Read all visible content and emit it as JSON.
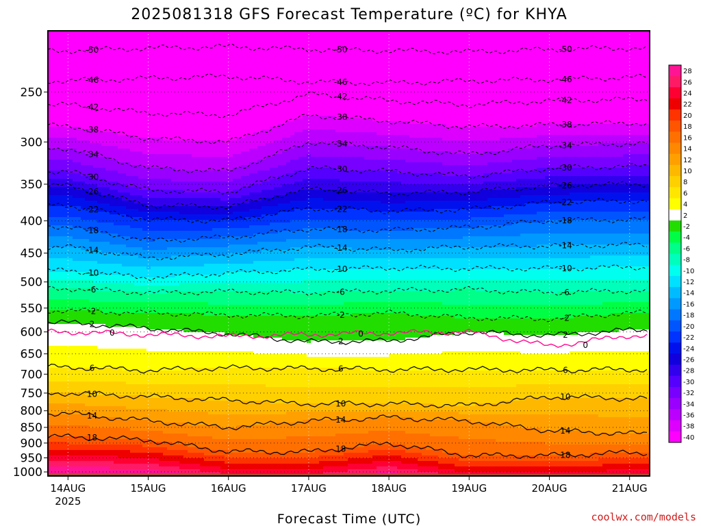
{
  "title": "2025081318 GFS Forecast Temperature (ºC) for KHYA",
  "xlabel": "Forecast Time (UTC)",
  "credit": "coolwx.com/models",
  "chart_data": {
    "type": "heatmap",
    "title": "2025081318 GFS Forecast Temperature (ºC) for KHYA",
    "xlabel": "Forecast Time (UTC)",
    "ylabel": "",
    "x_ticks": [
      {
        "label": "14AUG",
        "sublabel": "2025",
        "day": 0
      },
      {
        "label": "15AUG",
        "day": 1
      },
      {
        "label": "16AUG",
        "day": 2
      },
      {
        "label": "17AUG",
        "day": 3
      },
      {
        "label": "18AUG",
        "day": 4
      },
      {
        "label": "19AUG",
        "day": 5
      },
      {
        "label": "20AUG",
        "day": 6
      },
      {
        "label": "21AUG",
        "day": 7
      }
    ],
    "xlim": [
      -0.25,
      7.25
    ],
    "y_ticks": [
      250,
      300,
      350,
      400,
      450,
      500,
      550,
      600,
      650,
      700,
      750,
      800,
      850,
      900,
      950,
      1000
    ],
    "ylim_hpa": [
      1015,
      200
    ],
    "y_scale": "log-pressure",
    "colorbar_levels": [
      28,
      26,
      24,
      22,
      20,
      18,
      16,
      14,
      12,
      10,
      8,
      6,
      4,
      2,
      -2,
      -4,
      -6,
      -8,
      -10,
      -12,
      -14,
      -16,
      -18,
      -20,
      -22,
      -24,
      -26,
      -28,
      -30,
      -32,
      -34,
      -36,
      -38,
      -40
    ],
    "colorbar_colors": [
      "#ff1493",
      "#ff1a66",
      "#ff0033",
      "#ee0000",
      "#ff3300",
      "#ff5500",
      "#ff7000",
      "#ff8800",
      "#ffa000",
      "#ffb800",
      "#ffd000",
      "#ffe600",
      "#ffff00",
      "#ffffff",
      "#22dd00",
      "#00ff44",
      "#00ff88",
      "#00ffbb",
      "#00ffee",
      "#00e0ff",
      "#00bbff",
      "#0099ff",
      "#0077ff",
      "#0055ff",
      "#0033ff",
      "#0011ee",
      "#1100dd",
      "#3300ee",
      "#5500ff",
      "#7700ff",
      "#9900ff",
      "#bb00ff",
      "#dd00ff",
      "#ff00ff"
    ],
    "isotherms": [
      {
        "temp": -50,
        "p": [
          215,
          213,
          212,
          214,
          215,
          216,
          214,
          213
        ]
      },
      {
        "temp": -46,
        "p": [
          240,
          238,
          236,
          241,
          242,
          240,
          239,
          237
        ]
      },
      {
        "temp": -42,
        "p": [
          262,
          270,
          272,
          252,
          258,
          262,
          258,
          257
        ]
      },
      {
        "temp": -38,
        "p": [
          283,
          296,
          300,
          272,
          278,
          284,
          282,
          280
        ]
      },
      {
        "temp": -34,
        "p": [
          307,
          330,
          334,
          300,
          306,
          314,
          304,
          302
        ]
      },
      {
        "temp": -30,
        "p": [
          334,
          358,
          360,
          330,
          334,
          340,
          330,
          328
        ]
      },
      {
        "temp": -26,
        "p": [
          352,
          378,
          380,
          356,
          362,
          360,
          352,
          350
        ]
      },
      {
        "temp": -22,
        "p": [
          378,
          398,
          400,
          382,
          386,
          384,
          374,
          372
        ]
      },
      {
        "temp": -18,
        "p": [
          408,
          430,
          425,
          412,
          414,
          410,
          400,
          398
        ]
      },
      {
        "temp": -14,
        "p": [
          440,
          458,
          452,
          440,
          445,
          440,
          438,
          437
        ]
      },
      {
        "temp": -10,
        "p": [
          480,
          492,
          484,
          478,
          475,
          476,
          476,
          474
        ]
      },
      {
        "temp": -6,
        "p": [
          512,
          520,
          518,
          520,
          516,
          514,
          520,
          516
        ]
      },
      {
        "temp": -2,
        "p": [
          555,
          560,
          564,
          566,
          560,
          570,
          572,
          560
        ]
      },
      {
        "temp": 2,
        "p": [
          580,
          592,
          604,
          622,
          620,
          600,
          608,
          596
        ]
      },
      {
        "temp": 6,
        "p": [
          682,
          690,
          684,
          686,
          688,
          688,
          690,
          688
        ]
      },
      {
        "temp": 10,
        "p": [
          750,
          760,
          770,
          780,
          780,
          785,
          760,
          765
        ]
      },
      {
        "temp": 14,
        "p": [
          808,
          830,
          850,
          830,
          820,
          830,
          860,
          870
        ]
      },
      {
        "temp": 18,
        "p": [
          880,
          890,
          928,
          930,
          900,
          942,
          942,
          932
        ]
      }
    ],
    "freezing_line": {
      "temp": 0,
      "p": [
        600,
        606,
        610,
        606,
        602,
        600,
        632,
        608
      ]
    },
    "ground": {
      "pressure": 1015,
      "color": "#a0522d"
    }
  }
}
